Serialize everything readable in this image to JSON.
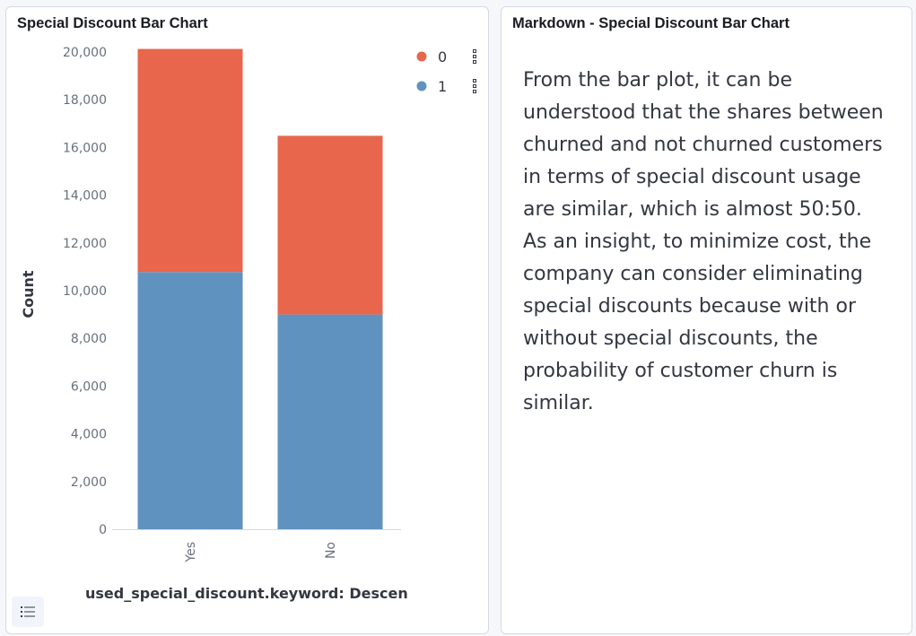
{
  "left_panel": {
    "title": "Special Discount Bar Chart",
    "legend_toggle_icon": "list-icon"
  },
  "right_panel": {
    "title": "Markdown - Special Discount Bar Chart",
    "body": "From the bar plot, it can be understood that the shares between churned and not churned customers in terms of special discount usage are similar, which is almost 50:50. As an insight, to minimize cost, the company can consider eliminating special discounts because with or without special discounts, the probability of customer churn is similar."
  },
  "chart_data": {
    "type": "bar",
    "stacked": true,
    "categories": [
      "Yes",
      "No"
    ],
    "series": [
      {
        "name": "0",
        "values": [
          9350,
          7490
        ],
        "color": "#e7664c"
      },
      {
        "name": "1",
        "values": [
          10780,
          9000
        ],
        "color": "#6092c0"
      }
    ],
    "ylabel": "Count",
    "xlabel": "used_special_discount.keyword: Descending",
    "ylim": [
      0,
      20000
    ],
    "yticks": [
      0,
      2000,
      4000,
      6000,
      8000,
      10000,
      12000,
      14000,
      16000,
      18000,
      20000
    ],
    "grid": false,
    "legend_position": "top-right",
    "legend_action_icon": "more-options-icon"
  }
}
